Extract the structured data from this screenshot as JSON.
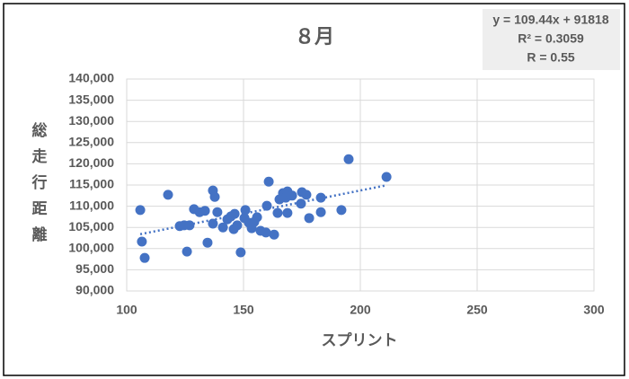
{
  "chart_data": {
    "type": "scatter",
    "title": "８月",
    "x_label": "スプリント",
    "y_label": "総走行距離",
    "annotation": [
      "y = 109.44x + 91818",
      "R² = 0.3059",
      "R = 0.55"
    ],
    "color": "#4472c4",
    "grid": true,
    "xlim": [
      100,
      300
    ],
    "xticks": [
      100,
      150,
      200,
      250,
      300
    ],
    "ylim": [
      90000,
      140000
    ],
    "yticks": [
      {
        "value": 90000,
        "label": "90,000"
      },
      {
        "value": 95000,
        "label": "95,000"
      },
      {
        "value": 100000,
        "label": "100,000"
      },
      {
        "value": 105000,
        "label": "105,000"
      },
      {
        "value": 110000,
        "label": "110,000"
      },
      {
        "value": 115000,
        "label": "115,000"
      },
      {
        "value": 120000,
        "label": "120,000"
      },
      {
        "value": 125000,
        "label": "125,000"
      },
      {
        "value": 130000,
        "label": "130,000"
      },
      {
        "value": 135000,
        "label": "135,000"
      },
      {
        "value": 140000,
        "label": "140,000"
      }
    ],
    "x": [
      105.8,
      106.5,
      107.7,
      117.7,
      122.7,
      124.6,
      125.8,
      126.9,
      128.8,
      131.2,
      133.5,
      134.6,
      136.9,
      137.7,
      136.9,
      138.8,
      141.2,
      143.1,
      144.6,
      146.2,
      145.8,
      147.3,
      148.8,
      150.4,
      150.8,
      152.3,
      153.5,
      154.6,
      155.8,
      157.3,
      159.6,
      160.0,
      160.8,
      163.1,
      164.6,
      165.4,
      166.9,
      168.1,
      168.8,
      168.8,
      170.8,
      174.6,
      175.0,
      176.9,
      178.1,
      183.1,
      183.1,
      191.9,
      195.0,
      211.2
    ],
    "y": [
      109100,
      101650,
      97800,
      112700,
      105300,
      105500,
      99300,
      105500,
      109300,
      108600,
      108900,
      101400,
      113700,
      112200,
      105900,
      108600,
      105000,
      106900,
      107600,
      108200,
      104600,
      105500,
      99100,
      107200,
      109100,
      106100,
      104800,
      106300,
      107400,
      104200,
      103800,
      110100,
      115800,
      103300,
      108400,
      111600,
      113100,
      112000,
      113500,
      108400,
      112500,
      110600,
      113300,
      112700,
      107200,
      108600,
      112000,
      109100,
      121100,
      116900
    ],
    "trendline": {
      "x": [
        105.8,
        211.2
      ],
      "y": [
        103397,
        114932
      ],
      "color": "#4472c4"
    }
  }
}
